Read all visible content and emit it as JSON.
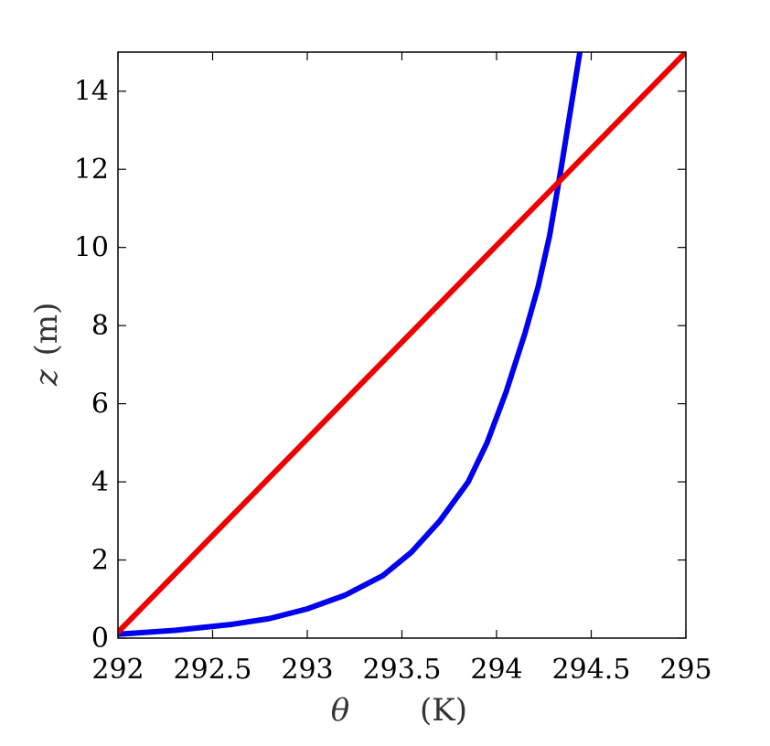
{
  "chart_data": {
    "type": "line",
    "title": "",
    "xlabel_symbol": "θ",
    "xlabel_unit": "(K)",
    "ylabel_symbol": "z",
    "ylabel_unit": "(m)",
    "xlim": [
      292,
      295
    ],
    "ylim": [
      0,
      15
    ],
    "xticks": [
      292,
      292.5,
      293,
      293.5,
      294,
      294.5,
      295
    ],
    "xtick_labels": [
      "292",
      "292.5",
      "293",
      "293.5",
      "294",
      "294.5",
      "295"
    ],
    "yticks": [
      0,
      2,
      4,
      6,
      8,
      10,
      12,
      14
    ],
    "ytick_labels": [
      "0",
      "2",
      "4",
      "6",
      "8",
      "10",
      "12",
      "14"
    ],
    "grid": false,
    "legend": "none",
    "series": [
      {
        "color": "#0000ee",
        "x": [
          292.0,
          292.3,
          292.6,
          292.8,
          293.0,
          293.2,
          293.4,
          293.55,
          293.7,
          293.85,
          293.95,
          294.05,
          294.15,
          294.22,
          294.28,
          294.34,
          294.4,
          294.44
        ],
        "y": [
          0.1,
          0.2,
          0.35,
          0.5,
          0.75,
          1.1,
          1.6,
          2.2,
          3.0,
          4.0,
          5.0,
          6.3,
          7.8,
          9.0,
          10.3,
          12.0,
          13.8,
          15.0
        ]
      },
      {
        "color": "#ee0000",
        "x": [
          292.0,
          295.0
        ],
        "y": [
          0.15,
          15.0
        ]
      }
    ]
  }
}
